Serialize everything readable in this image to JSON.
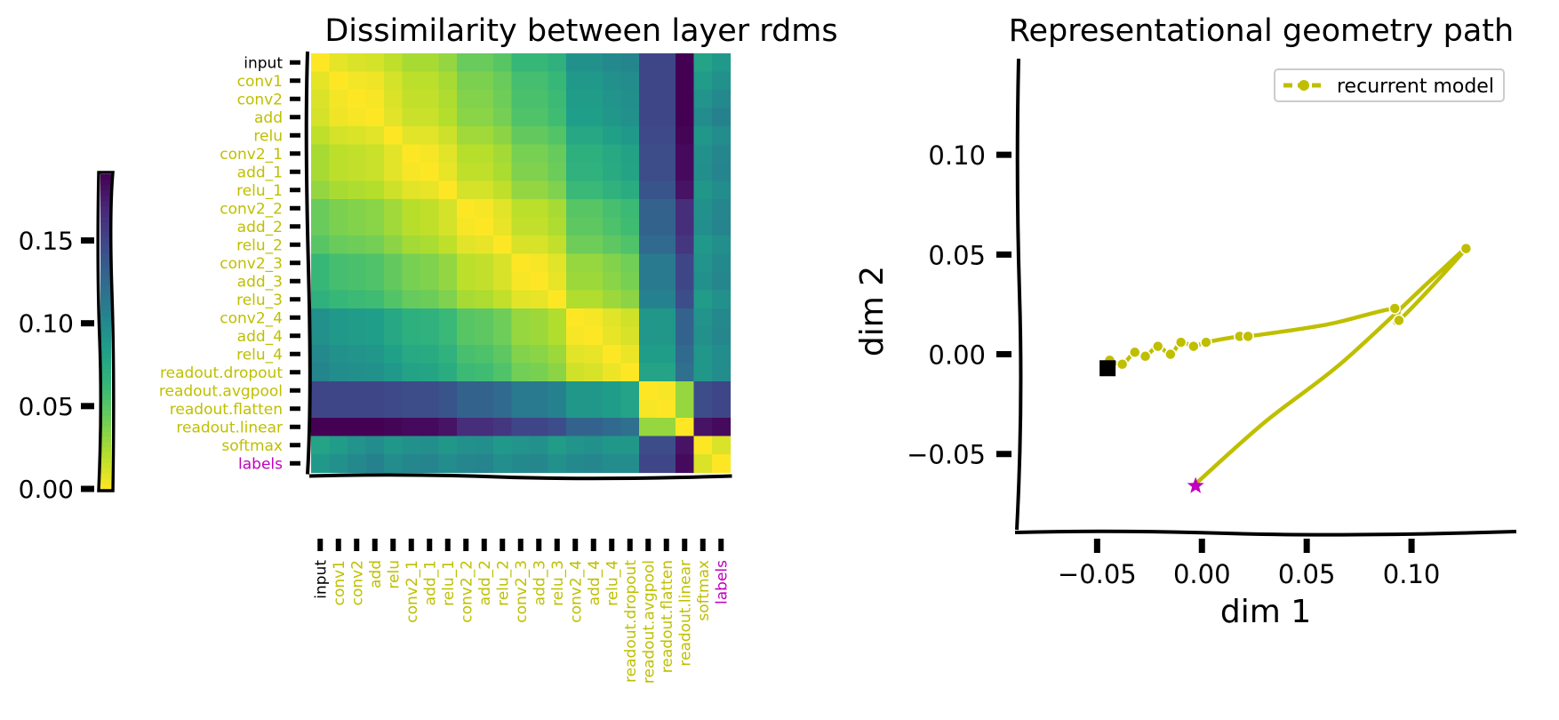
{
  "colors": {
    "recurrent": "#bfbf00",
    "labels": "#bf00bf",
    "input": "#000000",
    "axis": "#000000"
  },
  "chart_data": [
    {
      "type": "heatmap",
      "name": "colorbar",
      "colormap": "viridis",
      "range": [
        0,
        0.19
      ],
      "ticks": [
        0.0,
        0.05,
        0.1,
        0.15
      ],
      "tick_labels": [
        "0.00",
        "0.05",
        "0.10",
        "0.15"
      ]
    },
    {
      "type": "heatmap",
      "title": "Dissimilarity between layer rdms",
      "colormap": "viridis_r",
      "vmin": 0,
      "vmax": 0.19,
      "labels": [
        "input",
        "conv1",
        "conv2",
        "add",
        "relu",
        "conv2_1",
        "add_1",
        "relu_1",
        "conv2_2",
        "add_2",
        "relu_2",
        "conv2_3",
        "add_3",
        "relu_3",
        "conv2_4",
        "add_4",
        "relu_4",
        "readout.dropout",
        "readout.avgpool",
        "readout.flatten",
        "readout.linear",
        "softmax",
        "labels"
      ],
      "label_groups": {
        "input": [
          0
        ],
        "recurrent": [
          1,
          2,
          3,
          4,
          5,
          6,
          7,
          8,
          9,
          10,
          11,
          12,
          13,
          14,
          15,
          16,
          17,
          18,
          19,
          20,
          21
        ],
        "labels": [
          22
        ]
      },
      "values": [
        [
          0.0,
          0.007,
          0.01,
          0.012,
          0.018,
          0.025,
          0.025,
          0.031,
          0.044,
          0.044,
          0.05,
          0.063,
          0.063,
          0.069,
          0.094,
          0.094,
          0.1,
          0.103,
          0.15,
          0.15,
          0.19,
          0.08,
          0.088
        ],
        [
          0.007,
          0.0,
          0.003,
          0.004,
          0.012,
          0.019,
          0.019,
          0.025,
          0.038,
          0.038,
          0.044,
          0.057,
          0.057,
          0.063,
          0.088,
          0.088,
          0.094,
          0.098,
          0.15,
          0.15,
          0.19,
          0.086,
          0.094
        ],
        [
          0.01,
          0.003,
          0.0,
          0.002,
          0.01,
          0.017,
          0.017,
          0.023,
          0.036,
          0.036,
          0.042,
          0.055,
          0.055,
          0.061,
          0.086,
          0.086,
          0.092,
          0.096,
          0.15,
          0.15,
          0.19,
          0.092,
          0.1
        ],
        [
          0.012,
          0.004,
          0.002,
          0.0,
          0.008,
          0.015,
          0.015,
          0.021,
          0.034,
          0.034,
          0.04,
          0.053,
          0.053,
          0.059,
          0.084,
          0.084,
          0.09,
          0.094,
          0.15,
          0.15,
          0.19,
          0.098,
          0.106
        ],
        [
          0.018,
          0.012,
          0.01,
          0.008,
          0.0,
          0.008,
          0.008,
          0.014,
          0.027,
          0.027,
          0.033,
          0.046,
          0.046,
          0.052,
          0.077,
          0.077,
          0.083,
          0.088,
          0.148,
          0.148,
          0.188,
          0.09,
          0.098
        ],
        [
          0.025,
          0.019,
          0.017,
          0.015,
          0.008,
          0.0,
          0.002,
          0.008,
          0.02,
          0.02,
          0.026,
          0.039,
          0.039,
          0.045,
          0.07,
          0.07,
          0.076,
          0.081,
          0.145,
          0.145,
          0.185,
          0.094,
          0.102
        ],
        [
          0.025,
          0.019,
          0.017,
          0.015,
          0.008,
          0.002,
          0.0,
          0.006,
          0.018,
          0.018,
          0.024,
          0.037,
          0.037,
          0.043,
          0.068,
          0.068,
          0.074,
          0.079,
          0.145,
          0.145,
          0.185,
          0.096,
          0.104
        ],
        [
          0.031,
          0.025,
          0.023,
          0.021,
          0.014,
          0.008,
          0.006,
          0.0,
          0.012,
          0.012,
          0.018,
          0.031,
          0.031,
          0.037,
          0.062,
          0.062,
          0.068,
          0.073,
          0.14,
          0.14,
          0.18,
          0.09,
          0.098
        ],
        [
          0.044,
          0.038,
          0.036,
          0.034,
          0.027,
          0.02,
          0.018,
          0.012,
          0.0,
          0.002,
          0.008,
          0.019,
          0.019,
          0.025,
          0.05,
          0.05,
          0.056,
          0.061,
          0.13,
          0.13,
          0.165,
          0.094,
          0.102
        ],
        [
          0.044,
          0.038,
          0.036,
          0.034,
          0.027,
          0.02,
          0.018,
          0.012,
          0.002,
          0.0,
          0.006,
          0.017,
          0.017,
          0.023,
          0.048,
          0.048,
          0.054,
          0.059,
          0.13,
          0.13,
          0.165,
          0.096,
          0.104
        ],
        [
          0.05,
          0.044,
          0.042,
          0.04,
          0.033,
          0.026,
          0.024,
          0.018,
          0.008,
          0.006,
          0.0,
          0.011,
          0.011,
          0.017,
          0.042,
          0.042,
          0.048,
          0.053,
          0.125,
          0.125,
          0.16,
          0.088,
          0.096
        ],
        [
          0.063,
          0.057,
          0.055,
          0.053,
          0.046,
          0.039,
          0.037,
          0.031,
          0.019,
          0.017,
          0.011,
          0.0,
          0.002,
          0.008,
          0.03,
          0.03,
          0.036,
          0.041,
          0.112,
          0.112,
          0.15,
          0.092,
          0.1
        ],
        [
          0.063,
          0.057,
          0.055,
          0.053,
          0.046,
          0.039,
          0.037,
          0.031,
          0.019,
          0.017,
          0.011,
          0.002,
          0.0,
          0.006,
          0.028,
          0.028,
          0.034,
          0.039,
          0.112,
          0.112,
          0.15,
          0.094,
          0.102
        ],
        [
          0.069,
          0.063,
          0.061,
          0.059,
          0.052,
          0.045,
          0.043,
          0.037,
          0.025,
          0.023,
          0.017,
          0.008,
          0.006,
          0.0,
          0.022,
          0.022,
          0.028,
          0.033,
          0.106,
          0.106,
          0.145,
          0.086,
          0.094
        ],
        [
          0.094,
          0.088,
          0.086,
          0.084,
          0.077,
          0.07,
          0.068,
          0.062,
          0.05,
          0.048,
          0.042,
          0.03,
          0.028,
          0.022,
          0.0,
          0.002,
          0.008,
          0.013,
          0.09,
          0.09,
          0.13,
          0.092,
          0.1
        ],
        [
          0.094,
          0.088,
          0.086,
          0.084,
          0.077,
          0.07,
          0.068,
          0.062,
          0.05,
          0.048,
          0.042,
          0.03,
          0.028,
          0.022,
          0.002,
          0.0,
          0.006,
          0.011,
          0.09,
          0.09,
          0.13,
          0.094,
          0.102
        ],
        [
          0.1,
          0.094,
          0.092,
          0.09,
          0.083,
          0.076,
          0.074,
          0.068,
          0.056,
          0.054,
          0.048,
          0.036,
          0.034,
          0.028,
          0.008,
          0.006,
          0.0,
          0.005,
          0.085,
          0.085,
          0.125,
          0.09,
          0.098
        ],
        [
          0.103,
          0.098,
          0.096,
          0.094,
          0.088,
          0.081,
          0.079,
          0.073,
          0.061,
          0.059,
          0.053,
          0.041,
          0.039,
          0.033,
          0.013,
          0.011,
          0.005,
          0.0,
          0.08,
          0.08,
          0.12,
          0.09,
          0.098
        ],
        [
          0.15,
          0.15,
          0.15,
          0.15,
          0.148,
          0.145,
          0.145,
          0.14,
          0.13,
          0.13,
          0.125,
          0.112,
          0.112,
          0.106,
          0.09,
          0.09,
          0.085,
          0.08,
          0.0,
          0.002,
          0.03,
          0.145,
          0.15
        ],
        [
          0.15,
          0.15,
          0.15,
          0.15,
          0.148,
          0.145,
          0.145,
          0.14,
          0.13,
          0.13,
          0.125,
          0.112,
          0.112,
          0.106,
          0.09,
          0.09,
          0.085,
          0.08,
          0.002,
          0.0,
          0.03,
          0.145,
          0.15
        ],
        [
          0.19,
          0.19,
          0.19,
          0.19,
          0.188,
          0.185,
          0.185,
          0.18,
          0.165,
          0.165,
          0.16,
          0.15,
          0.15,
          0.145,
          0.13,
          0.13,
          0.125,
          0.12,
          0.03,
          0.03,
          0.0,
          0.18,
          0.185
        ],
        [
          0.08,
          0.086,
          0.092,
          0.098,
          0.09,
          0.094,
          0.096,
          0.09,
          0.094,
          0.096,
          0.088,
          0.092,
          0.094,
          0.086,
          0.092,
          0.094,
          0.09,
          0.09,
          0.145,
          0.145,
          0.18,
          0.0,
          0.01
        ],
        [
          0.088,
          0.094,
          0.1,
          0.106,
          0.098,
          0.102,
          0.104,
          0.098,
          0.102,
          0.104,
          0.096,
          0.1,
          0.102,
          0.094,
          0.1,
          0.102,
          0.098,
          0.098,
          0.15,
          0.15,
          0.185,
          0.01,
          0.0
        ]
      ]
    },
    {
      "type": "line",
      "title": "Representational geometry path",
      "xlabel": "dim 1",
      "ylabel": "dim 2",
      "xlim": [
        -0.09,
        0.15
      ],
      "ylim": [
        -0.088,
        0.15
      ],
      "xticks": [
        -0.05,
        0.0,
        0.05,
        0.1
      ],
      "xtick_labels": [
        "−0.05",
        "0.00",
        "0.05",
        "0.10"
      ],
      "yticks": [
        -0.05,
        0.0,
        0.05,
        0.1
      ],
      "ytick_labels": [
        "−0.05",
        "0.00",
        "0.05",
        "0.10"
      ],
      "legend": {
        "position": "top-right",
        "entries": [
          "recurrent model"
        ]
      },
      "series": [
        {
          "name": "recurrent model",
          "x": [
            -0.044,
            -0.038,
            -0.032,
            -0.027,
            -0.021,
            -0.015,
            -0.01,
            -0.004,
            0.002,
            0.018,
            0.022,
            0.06,
            0.092,
            0.094,
            0.126,
            0.11,
            0.067,
            0.03,
            -0.003
          ],
          "y": [
            -0.003,
            -0.005,
            0.001,
            -0.001,
            0.004,
            0.0,
            0.006,
            0.004,
            0.006,
            0.009,
            0.009,
            0.015,
            0.023,
            0.017,
            0.053,
            0.038,
            -0.004,
            -0.034,
            -0.065
          ],
          "markers": [
            true,
            true,
            true,
            true,
            true,
            true,
            true,
            true,
            true,
            true,
            true,
            false,
            true,
            true,
            true,
            false,
            false,
            false,
            false
          ]
        }
      ],
      "start": {
        "x": -0.045,
        "y": -0.007,
        "marker": "square"
      },
      "end": {
        "x": -0.003,
        "y": -0.066,
        "marker": "star"
      }
    }
  ]
}
